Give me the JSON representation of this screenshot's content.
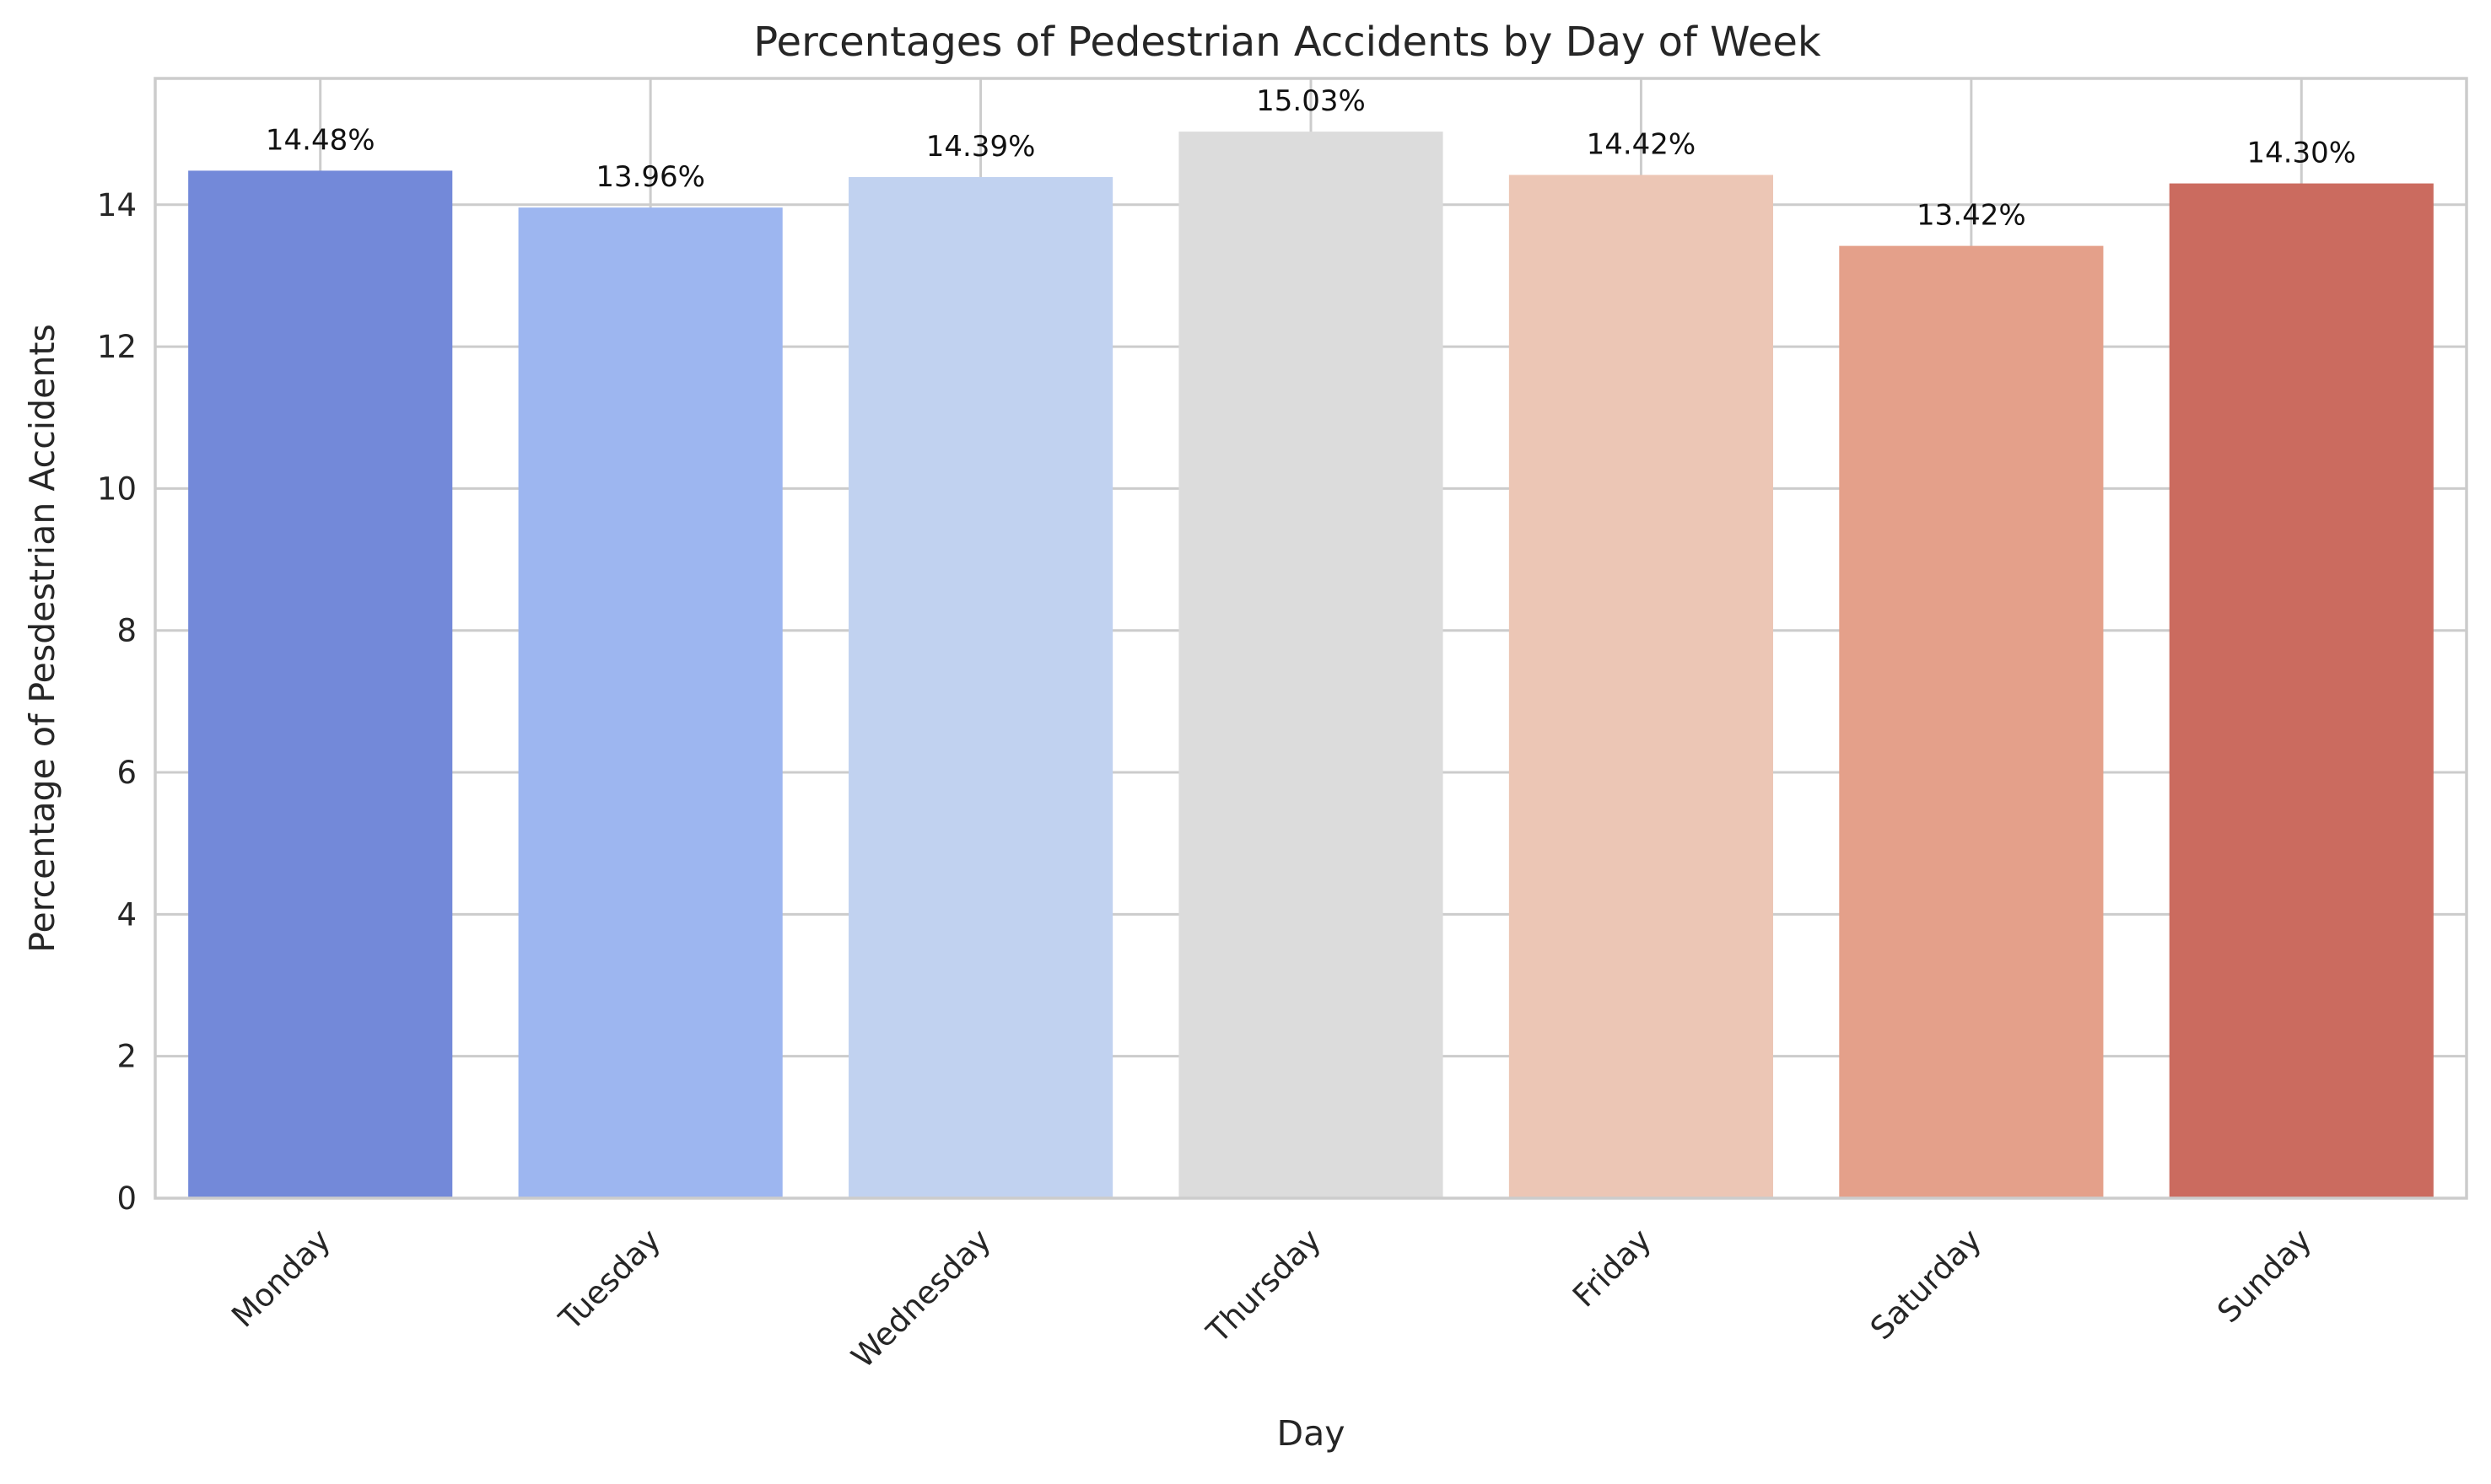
{
  "chart_data": {
    "type": "bar",
    "title": "Percentages of Pedestrian Accidents by Day of Week",
    "xlabel": "Day",
    "ylabel": "Percentage of Pesdestrian Accidents",
    "categories": [
      "Monday",
      "Tuesday",
      "Wednesday",
      "Thursday",
      "Friday",
      "Saturday",
      "Sunday"
    ],
    "values": [
      14.48,
      13.96,
      14.39,
      15.03,
      14.42,
      13.42,
      14.3
    ],
    "data_labels": [
      "14.48%",
      "13.96%",
      "14.39%",
      "15.03%",
      "14.42%",
      "13.42%",
      "14.30%"
    ],
    "colors": [
      "#7389d9",
      "#9db6f0",
      "#c1d2f0",
      "#dcdcdc",
      "#ecc6b5",
      "#e4a08a",
      "#cb6b5f"
    ],
    "ylim": [
      0,
      15.78
    ],
    "yticks": [
      0,
      2,
      4,
      6,
      8,
      10,
      12,
      14
    ],
    "grid": true,
    "x_tick_rotation": 45
  }
}
